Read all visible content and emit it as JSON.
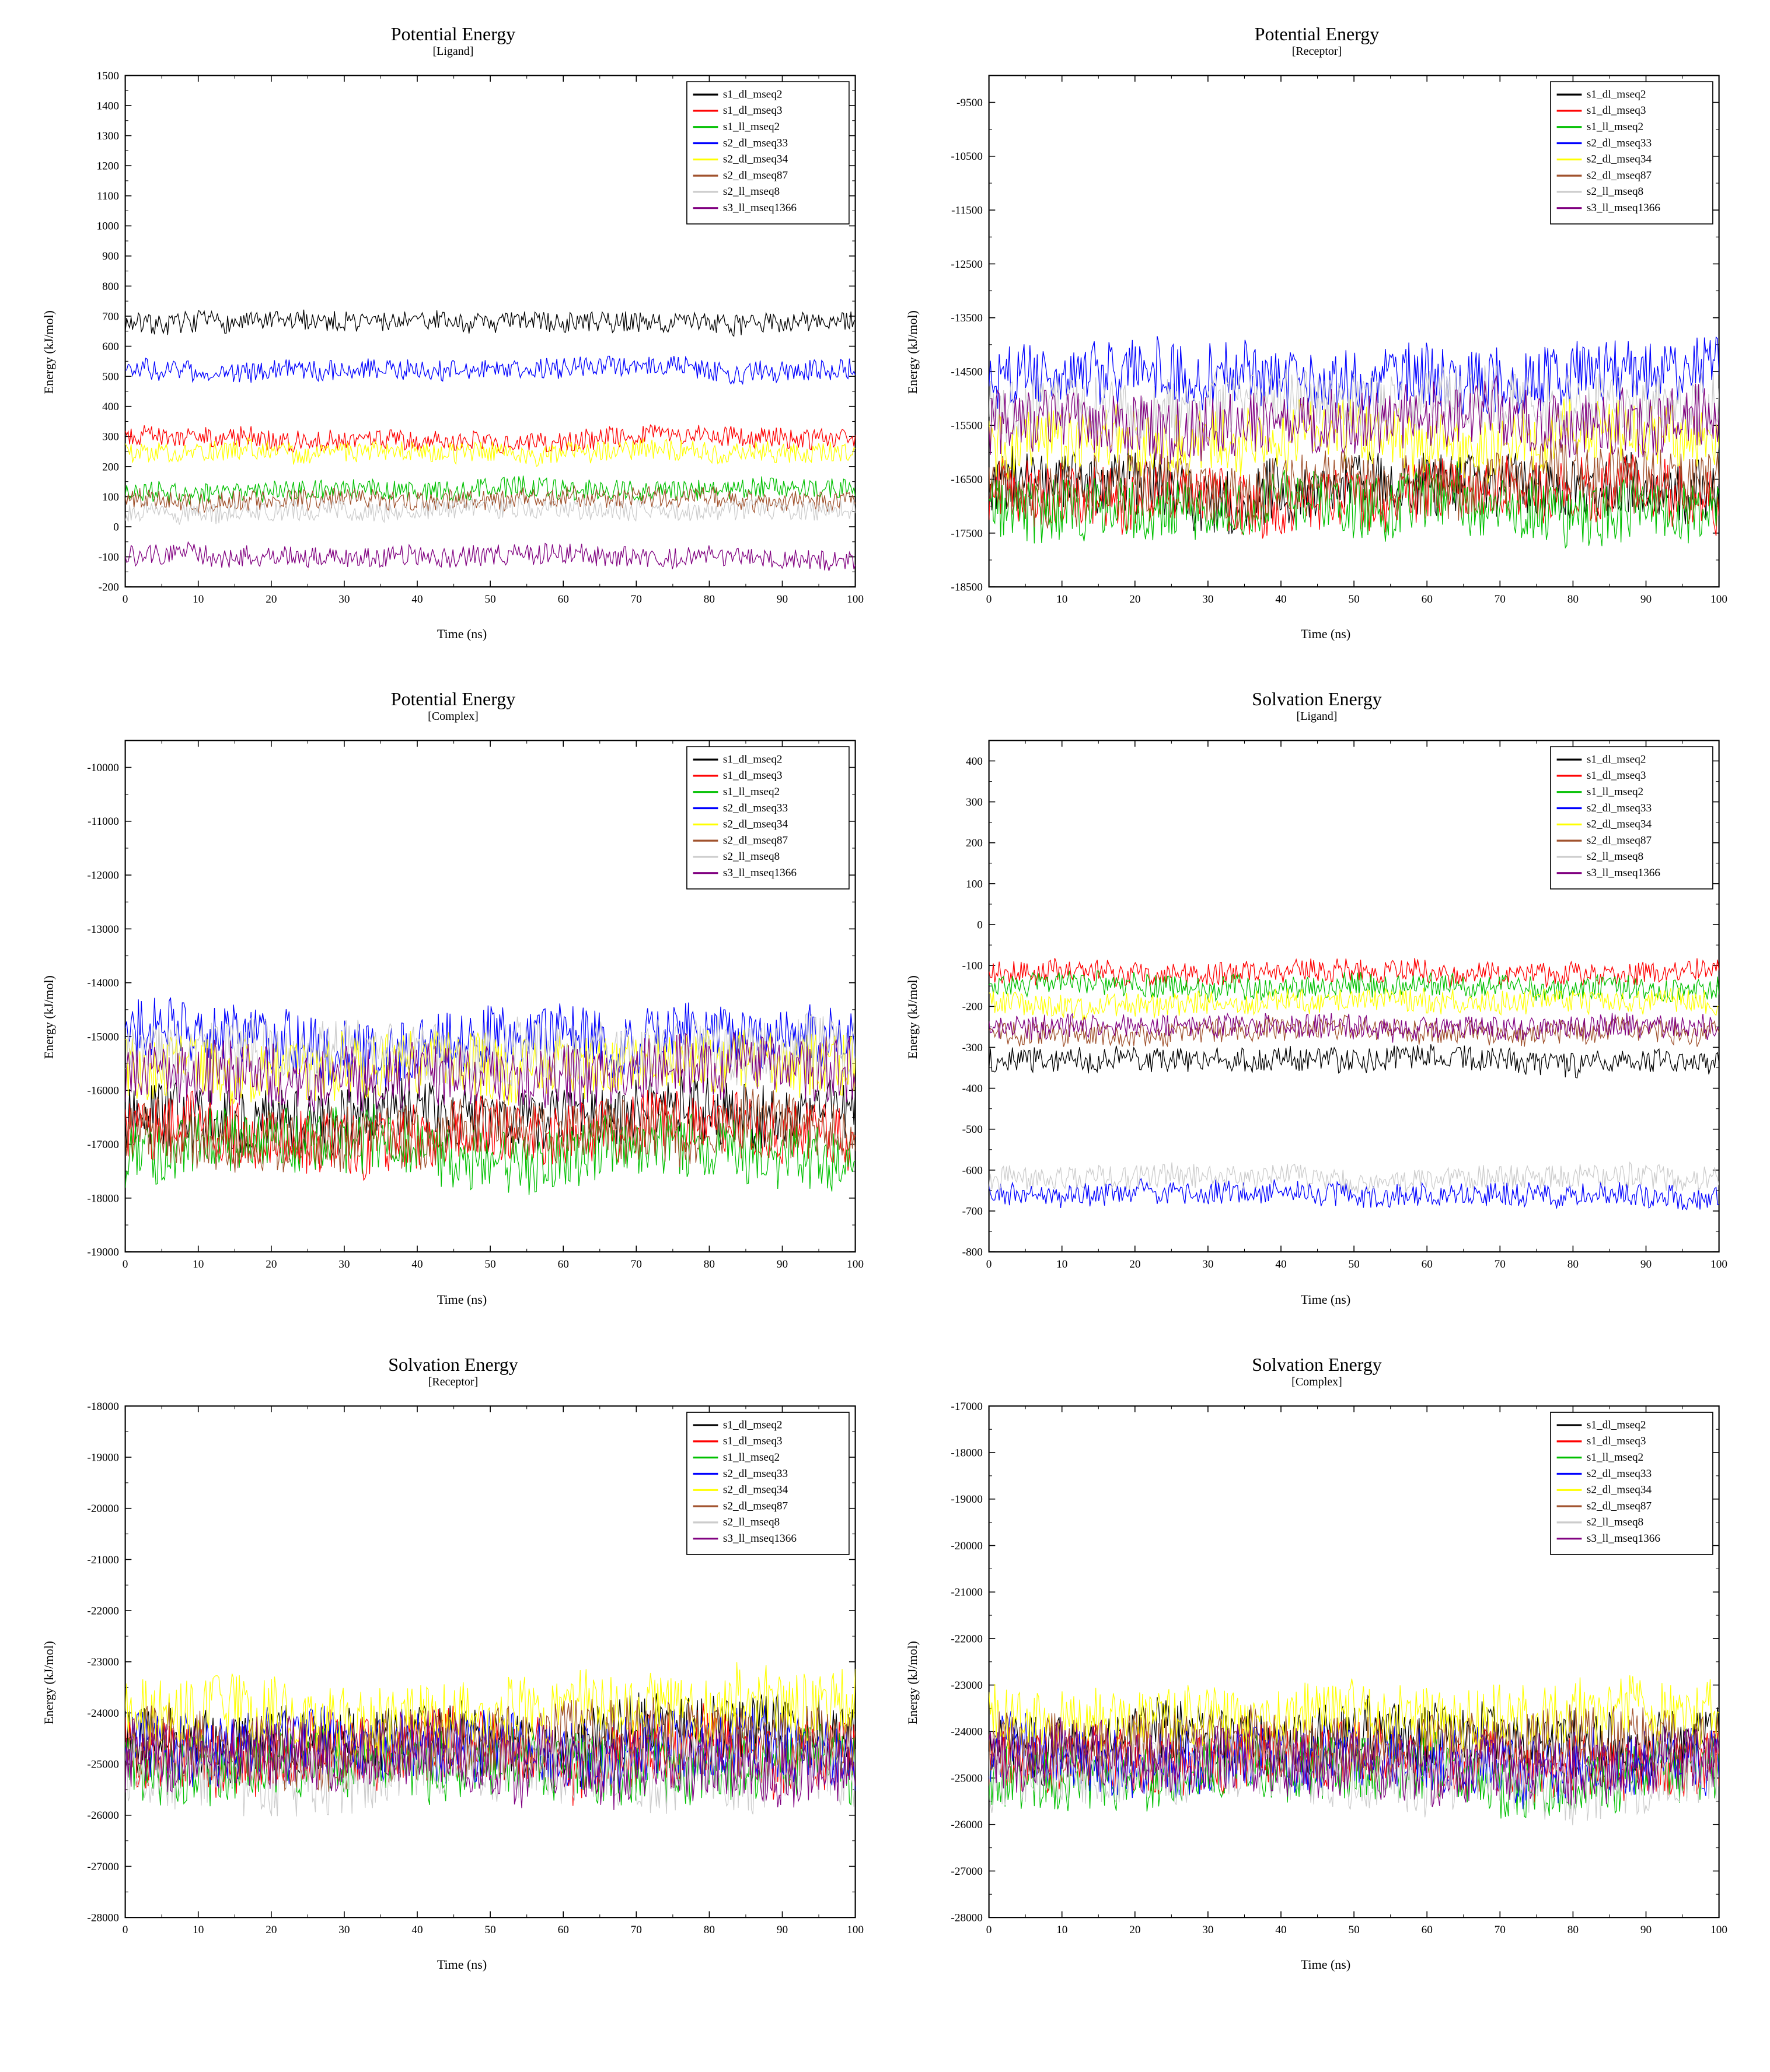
{
  "global": {
    "xlabel": "Time (ns)",
    "ylabel": "Energy (kJ/mol)",
    "x_min": 0,
    "x_max": 100,
    "x_tick_step": 10,
    "label_fontsize": 22,
    "title_fontsize": 32,
    "subtitle_fontsize": 20,
    "tick_fontsize": 18,
    "legend_fontsize": 18,
    "font_family": "Times New Roman",
    "background_color": "#ffffff",
    "axis_color": "#000000",
    "tick_length_major": 10,
    "tick_length_minor": 5,
    "line_width": 1.2,
    "noise_points_per_series": 500
  },
  "series_meta": [
    {
      "key": "s1_dl_mseq2",
      "label": "s1_dl_mseq2",
      "color": "#000000"
    },
    {
      "key": "s1_dl_mseq3",
      "label": "s1_dl_mseq3",
      "color": "#ff0000"
    },
    {
      "key": "s1_ll_mseq2",
      "label": "s1_ll_mseq2",
      "color": "#00c000"
    },
    {
      "key": "s2_dl_mseq33",
      "label": "s2_dl_mseq33",
      "color": "#0000ff"
    },
    {
      "key": "s2_dl_mseq34",
      "label": "s2_dl_mseq34",
      "color": "#ffff00"
    },
    {
      "key": "s2_dl_mseq87",
      "label": "s2_dl_mseq87",
      "color": "#a0522d"
    },
    {
      "key": "s2_ll_mseq8",
      "label": "s2_ll_mseq8",
      "color": "#cccccc"
    },
    {
      "key": "s3_ll_mseq1366",
      "label": "s3_ll_mseq1366",
      "color": "#800080"
    }
  ],
  "charts": [
    {
      "id": "pe_ligand",
      "title": "Potential Energy",
      "subtitle": "[Ligand]",
      "ylim": [
        -200,
        1500
      ],
      "ytick_step": 100,
      "noise_amp": 35,
      "series_baseline": {
        "s1_dl_mseq2": 680,
        "s1_dl_mseq3": 300,
        "s1_ll_mseq2": 120,
        "s2_dl_mseq33": 520,
        "s2_dl_mseq34": 250,
        "s2_dl_mseq87": 90,
        "s2_ll_mseq8": 50,
        "s3_ll_mseq1366": -100
      }
    },
    {
      "id": "pe_receptor",
      "title": "Potential Energy",
      "subtitle": "[Receptor]",
      "ylim": [
        -18500,
        -9000
      ],
      "ytick_step": 1000,
      "noise_amp": 600,
      "series_baseline": {
        "s1_dl_mseq2": -16500,
        "s1_dl_mseq3": -16800,
        "s1_ll_mseq2": -17000,
        "s2_dl_mseq33": -14700,
        "s2_dl_mseq34": -15800,
        "s2_dl_mseq87": -16600,
        "s2_ll_mseq8": -15200,
        "s3_ll_mseq1366": -15500
      }
    },
    {
      "id": "pe_complex",
      "title": "Potential Energy",
      "subtitle": "[Complex]",
      "ylim": [
        -19000,
        -9500
      ],
      "ytick_step": 1000,
      "noise_amp": 600,
      "series_baseline": {
        "s1_dl_mseq2": -16500,
        "s1_dl_mseq3": -16800,
        "s1_ll_mseq2": -17200,
        "s2_dl_mseq33": -15000,
        "s2_dl_mseq34": -15600,
        "s2_dl_mseq87": -16800,
        "s2_ll_mseq8": -15300,
        "s3_ll_mseq1366": -15700
      }
    },
    {
      "id": "sol_ligand",
      "title": "Solvation Energy",
      "subtitle": "[Ligand]",
      "ylim": [
        -800,
        450
      ],
      "ytick_step": 100,
      "noise_amp": 30,
      "series_baseline": {
        "s1_dl_mseq2": -330,
        "s1_dl_mseq3": -120,
        "s1_ll_mseq2": -150,
        "s2_dl_mseq33": -660,
        "s2_dl_mseq34": -190,
        "s2_dl_mseq87": -260,
        "s2_ll_mseq8": -620,
        "s3_ll_mseq1366": -250
      }
    },
    {
      "id": "sol_receptor",
      "title": "Solvation Energy",
      "subtitle": "[Receptor]",
      "ylim": [
        -28000,
        -18000
      ],
      "ytick_step": 1000,
      "noise_amp": 700,
      "series_baseline": {
        "s1_dl_mseq2": -24500,
        "s1_dl_mseq3": -24800,
        "s1_ll_mseq2": -25000,
        "s2_dl_mseq33": -24700,
        "s2_dl_mseq34": -24000,
        "s2_dl_mseq87": -24600,
        "s2_ll_mseq8": -25200,
        "s3_ll_mseq1366": -24900
      }
    },
    {
      "id": "sol_complex",
      "title": "Solvation Energy",
      "subtitle": "[Complex]",
      "ylim": [
        -28000,
        -17000
      ],
      "ytick_step": 1000,
      "noise_amp": 700,
      "series_baseline": {
        "s1_dl_mseq2": -24300,
        "s1_dl_mseq3": -24700,
        "s1_ll_mseq2": -24900,
        "s2_dl_mseq33": -24500,
        "s2_dl_mseq34": -23600,
        "s2_dl_mseq87": -24200,
        "s2_ll_mseq8": -25000,
        "s3_ll_mseq1366": -24600
      }
    }
  ]
}
